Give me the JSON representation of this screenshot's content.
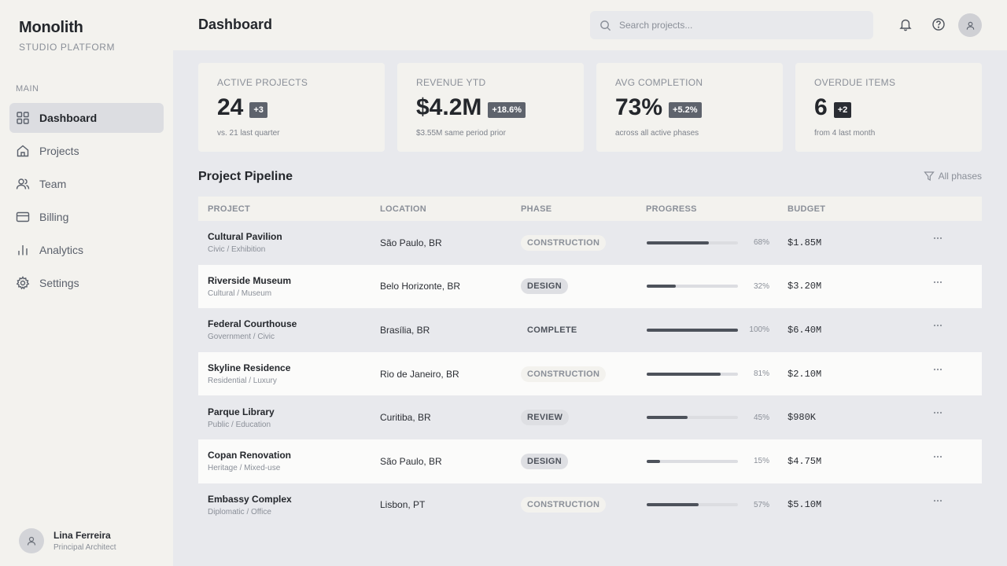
{
  "brand": {
    "name": "Monolith",
    "subtitle": "STUDIO PLATFORM"
  },
  "nav": {
    "section": "MAIN",
    "items": [
      {
        "label": "Dashboard",
        "icon": "grid-icon",
        "active": true
      },
      {
        "label": "Projects",
        "icon": "home-icon"
      },
      {
        "label": "Team",
        "icon": "users-icon"
      },
      {
        "label": "Billing",
        "icon": "card-icon"
      },
      {
        "label": "Analytics",
        "icon": "bar-chart-icon"
      },
      {
        "label": "Settings",
        "icon": "gear-icon"
      }
    ]
  },
  "user": {
    "name": "Lina Ferreira",
    "role": "Principal Architect"
  },
  "header": {
    "title": "Dashboard",
    "search_placeholder": "Search projects..."
  },
  "stats": [
    {
      "label": "ACTIVE PROJECTS",
      "value": "24",
      "delta": "+3",
      "sub": "vs. 21 last quarter"
    },
    {
      "label": "REVENUE YTD",
      "value": "$4.2M",
      "delta": "+18.6%",
      "sub": "$3.55M same period prior"
    },
    {
      "label": "AVG COMPLETION",
      "value": "73%",
      "delta": "+5.2%",
      "sub": "across all active phases"
    },
    {
      "label": "OVERDUE ITEMS",
      "value": "6",
      "delta": "+2",
      "sub": "from 4 last month"
    }
  ],
  "pipeline": {
    "title": "Project Pipeline",
    "filter": "All phases",
    "columns": {
      "project": "PROJECT",
      "location": "LOCATION",
      "phase": "PHASE",
      "progress": "PROGRESS",
      "budget": "BUDGET"
    },
    "rows": [
      {
        "name": "Cultural Pavilion",
        "type": "Civic / Exhibition",
        "location": "São Paulo, BR",
        "phase": "CONSTRUCTION",
        "progress": 68,
        "progress_label": "68%",
        "budget": "$1.85M"
      },
      {
        "name": "Riverside Museum",
        "type": "Cultural / Museum",
        "location": "Belo Horizonte, BR",
        "phase": "DESIGN",
        "progress": 32,
        "progress_label": "32%",
        "budget": "$3.20M"
      },
      {
        "name": "Federal Courthouse",
        "type": "Government / Civic",
        "location": "Brasília, BR",
        "phase": "COMPLETE",
        "progress": 100,
        "progress_label": "100%",
        "budget": "$6.40M"
      },
      {
        "name": "Skyline Residence",
        "type": "Residential / Luxury",
        "location": "Rio de Janeiro, BR",
        "phase": "CONSTRUCTION",
        "progress": 81,
        "progress_label": "81%",
        "budget": "$2.10M"
      },
      {
        "name": "Parque Library",
        "type": "Public / Education",
        "location": "Curitiba, BR",
        "phase": "REVIEW",
        "progress": 45,
        "progress_label": "45%",
        "budget": "$980K"
      },
      {
        "name": "Copan Renovation",
        "type": "Heritage / Mixed-use",
        "location": "São Paulo, BR",
        "phase": "DESIGN",
        "progress": 15,
        "progress_label": "15%",
        "budget": "$4.75M"
      },
      {
        "name": "Embassy Complex",
        "type": "Diplomatic / Office",
        "location": "Lisbon, PT",
        "phase": "CONSTRUCTION",
        "progress": 57,
        "progress_label": "57%",
        "budget": "$5.10M"
      }
    ]
  }
}
